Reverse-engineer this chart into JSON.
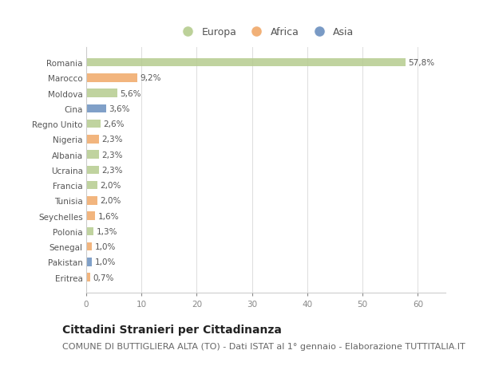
{
  "countries": [
    "Romania",
    "Marocco",
    "Moldova",
    "Cina",
    "Regno Unito",
    "Nigeria",
    "Albania",
    "Ucraina",
    "Francia",
    "Tunisia",
    "Seychelles",
    "Polonia",
    "Senegal",
    "Pakistan",
    "Eritrea"
  ],
  "values": [
    57.8,
    9.2,
    5.6,
    3.6,
    2.6,
    2.3,
    2.3,
    2.3,
    2.0,
    2.0,
    1.6,
    1.3,
    1.0,
    1.0,
    0.7
  ],
  "labels": [
    "57,8%",
    "9,2%",
    "5,6%",
    "3,6%",
    "2,6%",
    "2,3%",
    "2,3%",
    "2,3%",
    "2,0%",
    "2,0%",
    "1,6%",
    "1,3%",
    "1,0%",
    "1,0%",
    "0,7%"
  ],
  "continents": [
    "Europa",
    "Africa",
    "Europa",
    "Asia",
    "Europa",
    "Africa",
    "Europa",
    "Europa",
    "Europa",
    "Africa",
    "Africa",
    "Europa",
    "Africa",
    "Asia",
    "Africa"
  ],
  "colors": {
    "Europa": "#b5cc8e",
    "Africa": "#f0a868",
    "Asia": "#6a8fbf"
  },
  "title": "Cittadini Stranieri per Cittadinanza",
  "subtitle": "COMUNE DI BUTTIGLIERA ALTA (TO) - Dati ISTAT al 1° gennaio - Elaborazione TUTTITALIA.IT",
  "xlim": [
    0,
    65
  ],
  "xticks": [
    0,
    10,
    20,
    30,
    40,
    50,
    60
  ],
  "background_color": "#ffffff",
  "bar_height": 0.55,
  "title_fontsize": 10,
  "subtitle_fontsize": 8,
  "label_fontsize": 7.5,
  "tick_fontsize": 7.5,
  "legend_fontsize": 9
}
